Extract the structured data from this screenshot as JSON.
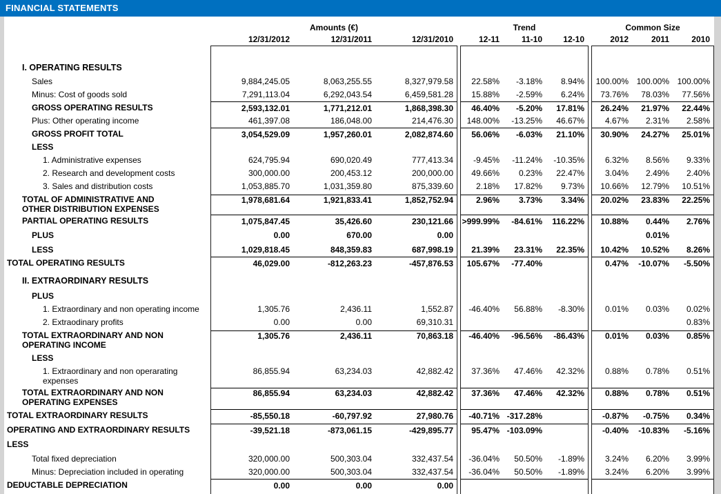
{
  "header": {
    "title": "FINANCIAL STATEMENTS"
  },
  "colors": {
    "title_bar_bg": "#0070C0",
    "sheet_bg": "#ffffff",
    "canvas_bg": "#d4d4d4",
    "text": "#000000"
  },
  "columns": {
    "groups": [
      {
        "label": "Amounts (€)",
        "cols": [
          "12/31/2012",
          "12/31/2011",
          "12/31/2010"
        ]
      },
      {
        "label": "Trend",
        "cols": [
          "12-11",
          "11-10",
          "12-10"
        ]
      },
      {
        "label": "Common Size",
        "cols": [
          "2012",
          "2011",
          "2010"
        ]
      }
    ]
  },
  "rows": [
    {
      "label": "I.  OPERATING RESULTS",
      "section": true,
      "indent": 1
    },
    {
      "label": "Sales",
      "indent": 2,
      "values": [
        "9,884,245.05",
        "8,063,255.55",
        "8,327,979.58",
        "22.58%",
        "-3.18%",
        "8.94%",
        "100.00%",
        "100.00%",
        "100.00%"
      ]
    },
    {
      "label": "Minus: Cost of goods sold",
      "indent": 2,
      "values": [
        "7,291,113.04",
        "6,292,043.54",
        "6,459,581.28",
        "15.88%",
        "-2.59%",
        "6.24%",
        "73.76%",
        "78.03%",
        "77.56%"
      ]
    },
    {
      "label": "GROSS OPERATING RESULTS",
      "indent": 2,
      "bold": true,
      "rule": true,
      "values": [
        "2,593,132.01",
        "1,771,212.01",
        "1,868,398.30",
        "46.40%",
        "-5.20%",
        "17.81%",
        "26.24%",
        "21.97%",
        "22.44%"
      ]
    },
    {
      "label": "Plus: Other operating income",
      "indent": 2,
      "values": [
        "461,397.08",
        "186,048.00",
        "214,476.30",
        "148.00%",
        "-13.25%",
        "46.67%",
        "4.67%",
        "2.31%",
        "2.58%"
      ]
    },
    {
      "label": "GROSS PROFIT TOTAL",
      "indent": 2,
      "bold": true,
      "rule": true,
      "values": [
        "3,054,529.09",
        "1,957,260.01",
        "2,082,874.60",
        "56.06%",
        "-6.03%",
        "21.10%",
        "30.90%",
        "24.27%",
        "25.01%"
      ]
    },
    {
      "label": "LESS",
      "indent": 2,
      "bold": true,
      "values": []
    },
    {
      "label": "1.  Administrative expenses",
      "indent": 3,
      "values": [
        "624,795.94",
        "690,020.49",
        "777,413.34",
        "-9.45%",
        "-11.24%",
        "-10.35%",
        "6.32%",
        "8.56%",
        "9.33%"
      ]
    },
    {
      "label": "2.  Research and development costs",
      "indent": 3,
      "values": [
        "300,000.00",
        "200,453.12",
        "200,000.00",
        "49.66%",
        "0.23%",
        "22.47%",
        "3.04%",
        "2.49%",
        "2.40%"
      ]
    },
    {
      "label": "3.  Sales and distribution costs",
      "indent": 3,
      "values": [
        "1,053,885.70",
        "1,031,359.80",
        "875,339.60",
        "2.18%",
        "17.82%",
        "9.73%",
        "10.66%",
        "12.79%",
        "10.51%"
      ]
    },
    {
      "label": "TOTAL OF ADMINISTRATIVE AND OTHER DISTRIBUTION EXPENSES (SG&A)",
      "indent": 1,
      "bold": true,
      "rule": true,
      "wrap": true,
      "values": [
        "1,978,681.64",
        "1,921,833.41",
        "1,852,752.94",
        "2.96%",
        "3.73%",
        "3.34%",
        "20.02%",
        "23.83%",
        "22.25%"
      ]
    },
    {
      "label": "PARTIAL OPERATING RESULTS",
      "indent": 1,
      "bold": true,
      "rule": true,
      "values": [
        "1,075,847.45",
        "35,426.60",
        "230,121.66",
        ">999.99%",
        "-84.61%",
        "116.22%",
        "10.88%",
        "0.44%",
        "2.76%"
      ]
    },
    {
      "label": "PLUS",
      "indent": 2,
      "bold": true,
      "gap": true,
      "values": [
        "0.00",
        "670.00",
        "0.00",
        "",
        "",
        "",
        "",
        "0.01%",
        ""
      ]
    },
    {
      "label": "LESS",
      "indent": 2,
      "bold": true,
      "gap": true,
      "values": [
        "1,029,818.45",
        "848,359.83",
        "687,998.19",
        "21.39%",
        "23.31%",
        "22.35%",
        "10.42%",
        "10.52%",
        "8.26%"
      ]
    },
    {
      "label": "TOTAL OPERATING RESULTS",
      "indent": 0,
      "bold": true,
      "rule": true,
      "values": [
        "46,029.00",
        "-812,263.23",
        "-457,876.53",
        "105.67%",
        "-77.40%",
        "",
        "0.47%",
        "-10.07%",
        "-5.50%"
      ]
    },
    {
      "label": "II.  EXTRAORDINARY RESULTS",
      "section": true,
      "indent": 1
    },
    {
      "label": "PLUS",
      "indent": 2,
      "bold": true,
      "gap": true,
      "values": []
    },
    {
      "label": "1.  Extraordinary and non operating income",
      "indent": 3,
      "values": [
        "1,305.76",
        "2,436.11",
        "1,552.87",
        "-46.40%",
        "56.88%",
        "-8.30%",
        "0.01%",
        "0.03%",
        "0.02%"
      ]
    },
    {
      "label": "2.  Extraodinary profits",
      "indent": 3,
      "values": [
        "0.00",
        "0.00",
        "69,310.31",
        "",
        "",
        "",
        "",
        "",
        "0.83%"
      ]
    },
    {
      "label": "TOTAL EXTRAORDINARY AND NON OPERATING INCOME",
      "indent": 1,
      "bold": true,
      "rule": true,
      "wrap": true,
      "values": [
        "1,305.76",
        "2,436.11",
        "70,863.18",
        "-46.40%",
        "-96.56%",
        "-86.43%",
        "0.01%",
        "0.03%",
        "0.85%"
      ]
    },
    {
      "label": "LESS",
      "indent": 2,
      "bold": true,
      "gap": true,
      "values": []
    },
    {
      "label": "1.  Extraordinary and non operarating expenses",
      "indent": 3,
      "wrap": true,
      "values": [
        "86,855.94",
        "63,234.03",
        "42,882.42",
        "37.36%",
        "47.46%",
        "42.32%",
        "0.88%",
        "0.78%",
        "0.51%"
      ]
    },
    {
      "label": "TOTAL EXTRAORDINARY AND NON OPERATING EXPENSES",
      "indent": 1,
      "bold": true,
      "rule": true,
      "wrap": true,
      "values": [
        "86,855.94",
        "63,234.03",
        "42,882.42",
        "37.36%",
        "47.46%",
        "42.32%",
        "0.88%",
        "0.78%",
        "0.51%"
      ]
    },
    {
      "label": "TOTAL EXTRAORDINARY RESULTS",
      "indent": 0,
      "bold": true,
      "rule": true,
      "gap": true,
      "values": [
        "-85,550.18",
        "-60,797.92",
        "27,980.76",
        "-40.71%",
        "-317.28%",
        "",
        "-0.87%",
        "-0.75%",
        "0.34%"
      ]
    },
    {
      "label": "OPERATING AND EXTRAORDINARY RESULTS",
      "indent": 0,
      "bold": true,
      "rule": true,
      "gap": true,
      "values": [
        "-39,521.18",
        "-873,061.15",
        "-429,895.77",
        "95.47%",
        "-103.09%",
        "",
        "-0.40%",
        "-10.83%",
        "-5.16%"
      ]
    },
    {
      "label": "LESS",
      "indent": 0,
      "bold": true,
      "gap": true,
      "values": []
    },
    {
      "label": "Total fixed depreciation",
      "indent": 2,
      "gap": true,
      "values": [
        "320,000.00",
        "500,303.04",
        "332,437.54",
        "-36.04%",
        "50.50%",
        "-1.89%",
        "3.24%",
        "6.20%",
        "3.99%"
      ]
    },
    {
      "label": "Minus: Depreciation included in operating results",
      "indent": 2,
      "values": [
        "320,000.00",
        "500,303.04",
        "332,437.54",
        "-36.04%",
        "50.50%",
        "-1.89%",
        "3.24%",
        "6.20%",
        "3.99%"
      ]
    },
    {
      "label": "DEDUCTABLE DEPRECIATION",
      "indent": 0,
      "bold": true,
      "rule": true,
      "values": [
        "0.00",
        "0.00",
        "0.00",
        "",
        "",
        "",
        "",
        "",
        ""
      ]
    }
  ]
}
